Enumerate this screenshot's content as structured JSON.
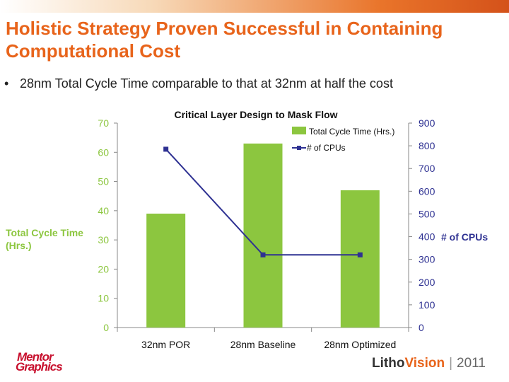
{
  "slide": {
    "title": "Holistic Strategy Proven Successful in Containing Computational Cost",
    "bullet": "28nm Total Cycle Time comparable to that at 32nm at half the cost",
    "bullet_marker": "•"
  },
  "chart_data": {
    "type": "bar",
    "title": "Critical Layer Design to Mask Flow",
    "categories": [
      "32nm POR",
      "28nm Baseline",
      "28nm Optimized"
    ],
    "series": [
      {
        "name": "Total Cycle Time (Hrs.)",
        "type": "bar",
        "axis": "left",
        "color": "#8cc63f",
        "values": [
          39,
          63,
          47
        ]
      },
      {
        "name": "# of CPUs",
        "type": "line",
        "axis": "right",
        "color": "#2e3192",
        "values": [
          785,
          320,
          320
        ]
      }
    ],
    "ylabel": "Total Cycle Time (Hrs.)",
    "ylim": [
      0,
      70
    ],
    "y_ticks": [
      "0",
      "10",
      "20",
      "30",
      "40",
      "50",
      "60",
      "70"
    ],
    "y2label": "# of CPUs",
    "y2lim": [
      0,
      900
    ],
    "y2_ticks": [
      "0",
      "100",
      "200",
      "300",
      "400",
      "500",
      "600",
      "700",
      "800",
      "900"
    ],
    "grid": false,
    "legend_position": "top-right"
  },
  "footer": {
    "logo_line1": "Mentor",
    "logo_line2": "Graphics",
    "brand_part1": "Litho",
    "brand_part2": "Vision",
    "separator": "|",
    "year": "2011"
  }
}
